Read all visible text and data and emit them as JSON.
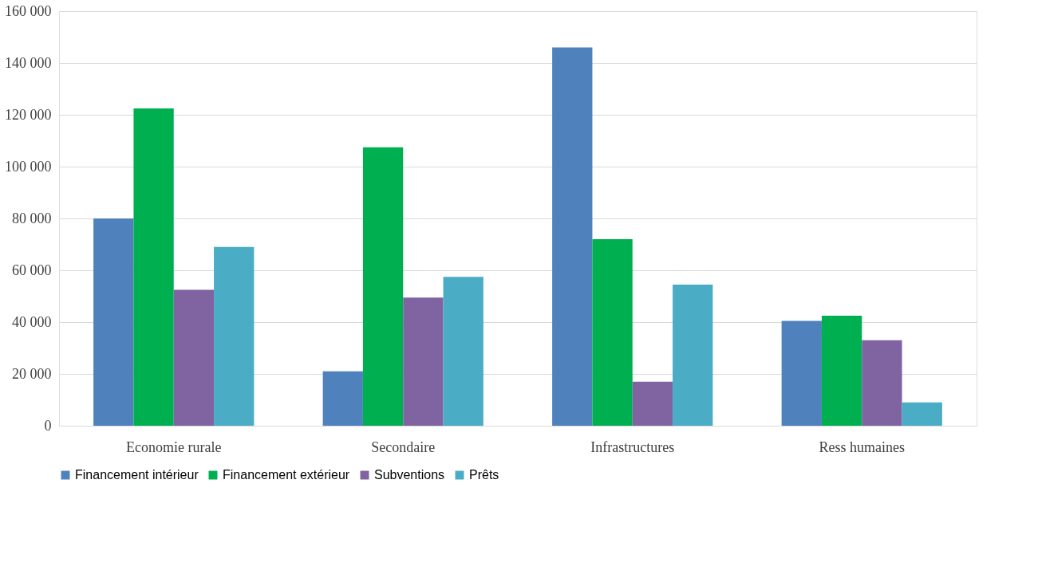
{
  "chart_data": {
    "type": "bar",
    "categories": [
      "Economie rurale",
      "Secondaire",
      "Infrastructures",
      "Ress humaines"
    ],
    "series": [
      {
        "name": "Financement intérieur",
        "color": "#4f81bd",
        "values": [
          80000,
          21000,
          146000,
          40500
        ]
      },
      {
        "name": "Financement extérieur",
        "color": "#00b050",
        "values": [
          122500,
          107500,
          72000,
          42500
        ]
      },
      {
        "name": "Subventions",
        "color": "#8064a2",
        "values": [
          52500,
          49500,
          17000,
          33000
        ]
      },
      {
        "name": "Prêts",
        "color": "#4bacc6",
        "values": [
          69000,
          57500,
          54500,
          9000
        ]
      }
    ],
    "ylim": [
      0,
      160000
    ],
    "yticks": [
      {
        "value": 0,
        "label": "0"
      },
      {
        "value": 20000,
        "label": "20 000"
      },
      {
        "value": 40000,
        "label": "40 000"
      },
      {
        "value": 60000,
        "label": "60 000"
      },
      {
        "value": 80000,
        "label": "80 000"
      },
      {
        "value": 100000,
        "label": "100 000"
      },
      {
        "value": 120000,
        "label": "120 000"
      },
      {
        "value": 140000,
        "label": "140 000"
      },
      {
        "value": 160000,
        "label": "160 000"
      }
    ],
    "grid": "y",
    "legend": "bottom"
  }
}
